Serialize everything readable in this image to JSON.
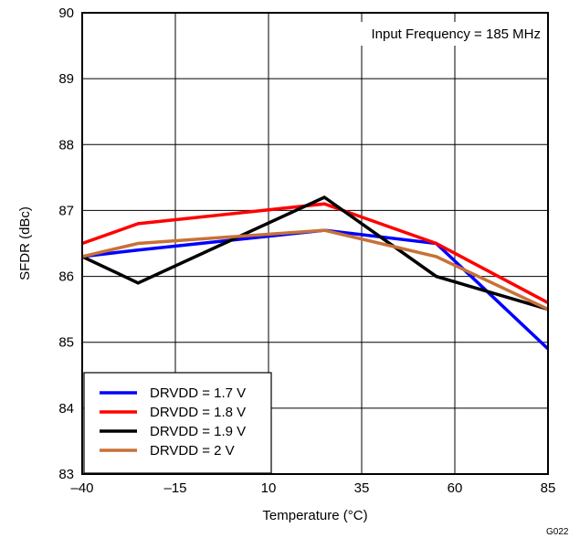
{
  "chart_data": {
    "type": "line",
    "title": "",
    "annotation": "Input Frequency = 185 MHz",
    "xlabel": "Temperature (°C)",
    "ylabel": "SFDR (dBc)",
    "figure_id": "G022",
    "xlim": [
      -40,
      85
    ],
    "ylim": [
      83,
      90
    ],
    "x_ticks": [
      -40,
      -15,
      10,
      35,
      60,
      85
    ],
    "x_tick_labels": [
      "–40",
      "–15",
      "10",
      "35",
      "60",
      "85"
    ],
    "y_ticks": [
      83,
      84,
      85,
      86,
      87,
      88,
      89,
      90
    ],
    "y_tick_labels": [
      "83",
      "84",
      "85",
      "86",
      "87",
      "88",
      "89",
      "90"
    ],
    "grid": true,
    "legend_position": "bottom-left",
    "series": [
      {
        "name": "DRVDD = 1.7 V",
        "color": "#0000ff",
        "x": [
          -40,
          -25,
          25,
          55,
          85
        ],
        "y": [
          86.3,
          86.4,
          86.7,
          86.5,
          84.9
        ]
      },
      {
        "name": "DRVDD = 1.8 V",
        "color": "#ff0000",
        "x": [
          -40,
          -25,
          25,
          55,
          85
        ],
        "y": [
          86.5,
          86.8,
          87.1,
          86.5,
          85.6
        ]
      },
      {
        "name": "DRVDD = 1.9 V",
        "color": "#000000",
        "x": [
          -40,
          -25,
          25,
          55,
          85
        ],
        "y": [
          86.3,
          85.9,
          87.2,
          86.0,
          85.5
        ]
      },
      {
        "name": "DRVDD = 2 V",
        "color": "#c87137",
        "x": [
          -40,
          -25,
          25,
          55,
          85
        ],
        "y": [
          86.3,
          86.5,
          86.7,
          86.3,
          85.5
        ]
      }
    ]
  }
}
